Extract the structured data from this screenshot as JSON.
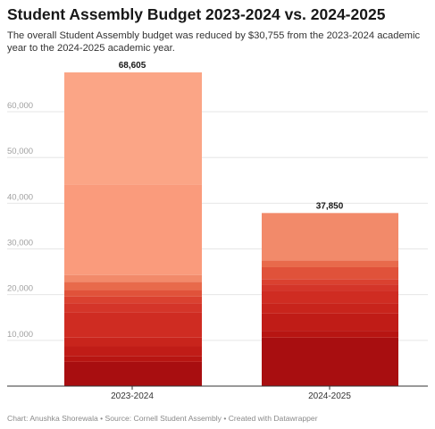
{
  "header": {
    "title": "Student Assembly Budget 2023-2024 vs. 2024-2025",
    "subtitle": "The overall Student Assembly budget was reduced by $30,755 from the 2023-2024 academic year to the 2024-2025 academic year."
  },
  "footer": {
    "credit": "Chart: Anushka Shorewala • Source: Cornell Student Assembly • Created with Datawrapper"
  },
  "chart_data": {
    "type": "bar",
    "stacked": true,
    "categories": [
      "2023-2024",
      "2024-2025"
    ],
    "totals": [
      68605,
      37850
    ],
    "total_labels": [
      "68,605",
      "37,850"
    ],
    "segments": [
      [
        5300,
        1300,
        2100,
        1900,
        5500,
        2000,
        1500,
        1400,
        1800,
        1500,
        19800,
        24505
      ],
      [
        10600,
        1500,
        3800,
        2200,
        2800,
        1300,
        1200,
        2600,
        1500,
        10350
      ]
    ],
    "segment_colors": [
      "#a80e10",
      "#b71512",
      "#c01c17",
      "#c8241c",
      "#cf2c22",
      "#d43529",
      "#da4130",
      "#e0523a",
      "#e86a4b",
      "#f28a6a",
      "#fa9b7c",
      "#fba586"
    ],
    "ylim": [
      0,
      70000
    ],
    "yticks": [
      0,
      10000,
      20000,
      30000,
      40000,
      50000,
      60000
    ],
    "ytick_labels": [
      "",
      "10,000",
      "20,000",
      "30,000",
      "40,000",
      "50,000",
      "60,000"
    ],
    "grid": true,
    "xlabel": "",
    "ylabel": ""
  }
}
